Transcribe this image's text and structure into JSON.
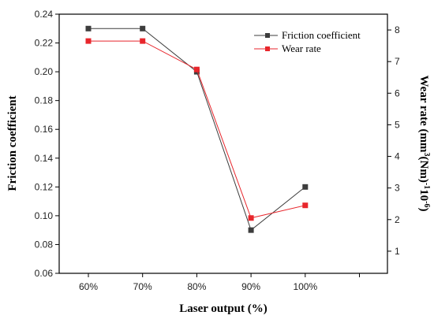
{
  "chart_data": {
    "type": "line",
    "categories": [
      "60%",
      "70%",
      "80%",
      "90%",
      "100%"
    ],
    "xlabel": "Laser output (%)",
    "ylabel_left": "Friction coefficient",
    "ylabel_right_parts": [
      "Wear rate (mm",
      "3",
      "(Nm)",
      "-1",
      "10",
      "-6",
      ")"
    ],
    "y_left": {
      "min": 0.06,
      "max": 0.24,
      "ticks": [
        "0.06",
        "0.08",
        "0.10",
        "0.12",
        "0.14",
        "0.16",
        "0.18",
        "0.20",
        "0.22",
        "0.24"
      ]
    },
    "y_right": {
      "min": 0.3,
      "max": 8.5,
      "ticks": [
        "1",
        "2",
        "3",
        "4",
        "5",
        "6",
        "7",
        "8"
      ]
    },
    "series": [
      {
        "name": "Friction coefficient",
        "axis": "left",
        "color": "#3d3d3d",
        "marker": "square",
        "values": [
          0.23,
          0.23,
          0.2,
          0.09,
          0.12
        ]
      },
      {
        "name": "Wear rate",
        "axis": "right",
        "color": "#e8262c",
        "marker": "square",
        "values": [
          7.65,
          7.65,
          6.75,
          2.05,
          2.45
        ]
      }
    ],
    "grid": false,
    "legend_position": "top-right"
  }
}
